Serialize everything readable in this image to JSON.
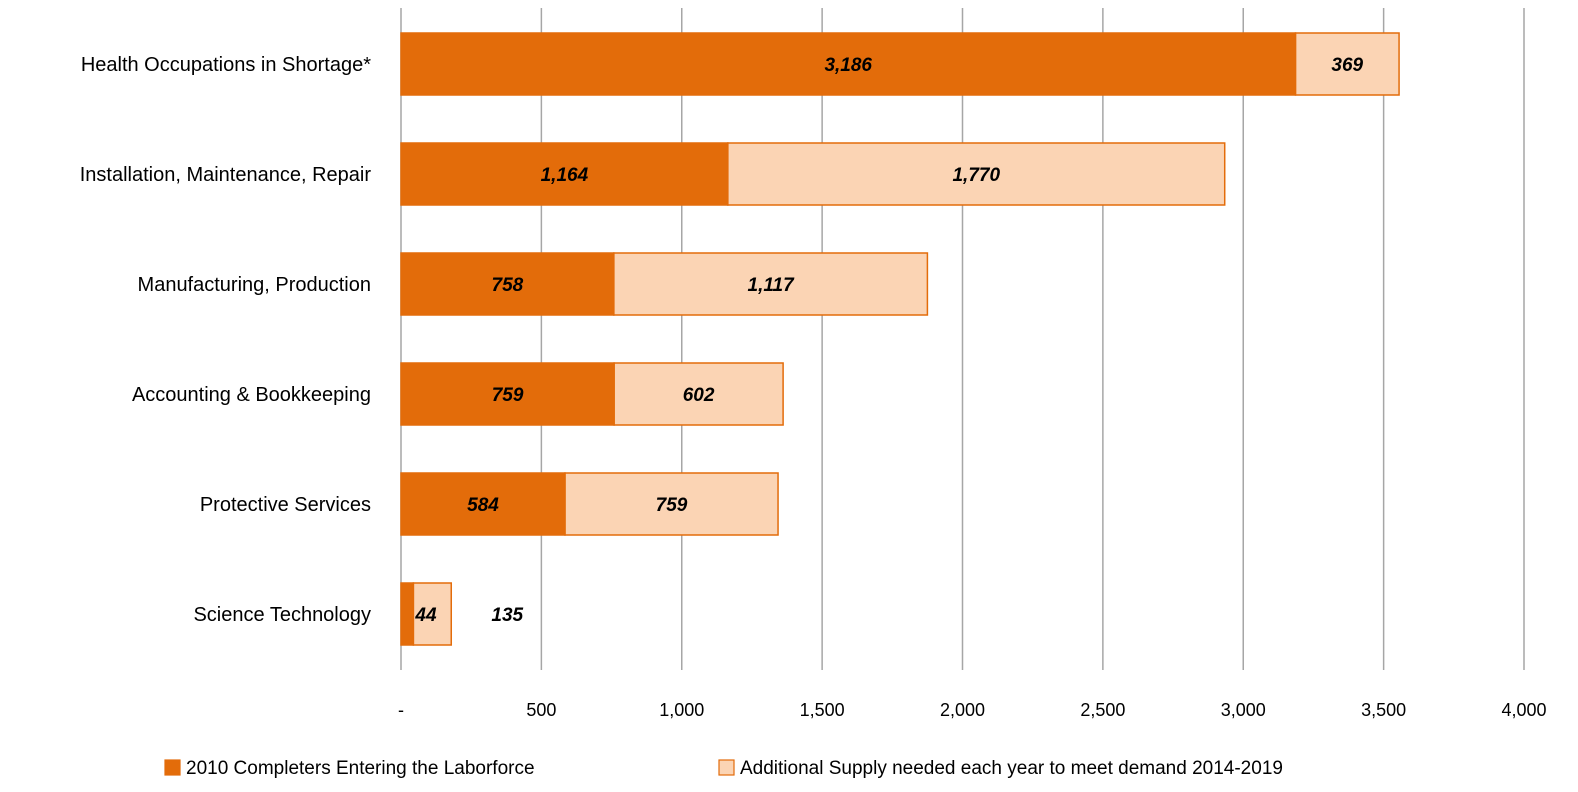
{
  "chart_data": {
    "type": "bar",
    "orientation": "horizontal",
    "stacked": true,
    "categories": [
      "Health Occupations in Shortage*",
      "Installation, Maintenance, Repair",
      "Manufacturing, Production",
      "Accounting & Bookkeeping",
      "Protective Services",
      "Science Technology"
    ],
    "series": [
      {
        "name": "2010 Completers Entering the Laborforce",
        "color": "#e36c0a",
        "values": [
          3186,
          1164,
          758,
          759,
          584,
          44
        ],
        "labels": [
          "3,186",
          "1,164",
          "758",
          "759",
          "584",
          "44"
        ]
      },
      {
        "name": "Additional Supply needed each year to meet demand 2014-2019",
        "color": "#fbd4b4",
        "border": "#e36c0a",
        "values": [
          369,
          1770,
          1117,
          602,
          759,
          135
        ],
        "labels": [
          "369",
          "1,770",
          "1,117",
          "602",
          "759",
          "135"
        ]
      }
    ],
    "xlim": [
      0,
      4000
    ],
    "xticks": [
      0,
      500,
      1000,
      1500,
      2000,
      2500,
      3000,
      3500,
      4000
    ],
    "xtick_labels": [
      "-",
      "500",
      "1,000",
      "1,500",
      "2,000",
      "2,500",
      "3,000",
      "3,500",
      "4,000"
    ],
    "grid": "vertical",
    "legend_position": "bottom",
    "title": "",
    "xlabel": "",
    "ylabel": ""
  }
}
